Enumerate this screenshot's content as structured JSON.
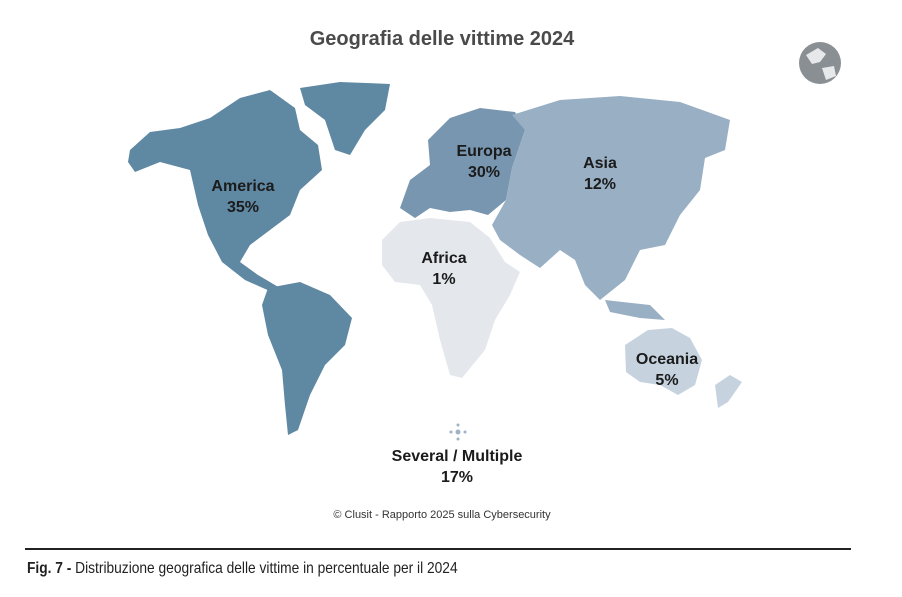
{
  "chart_data": {
    "type": "choropleth",
    "title": "Geografia delle vittime 2024",
    "regions": [
      {
        "name": "America",
        "value": 35,
        "label": "35%",
        "color": "#5f88a3"
      },
      {
        "name": "Europa",
        "value": 30,
        "label": "30%",
        "color": "#7896b0"
      },
      {
        "name": "Asia",
        "value": 12,
        "label": "12%",
        "color": "#98afc4"
      },
      {
        "name": "Africa",
        "value": 1,
        "label": "1%",
        "color": "#e4e8ec"
      },
      {
        "name": "Oceania",
        "value": 5,
        "label": "5%",
        "color": "#c6d3df"
      },
      {
        "name": "Several / Multiple",
        "value": 17,
        "label": "17%",
        "color": "#9fb3c6"
      }
    ]
  },
  "credit": "© Clusit - Rapporto 2025 sulla Cybersecurity",
  "caption": {
    "prefix": "Fig. 7 -",
    "text": " Distribuzione geografica delle vittime in percentuale per il 2024"
  },
  "icons": {
    "globe": "globe-icon",
    "multiple": "dots-cross-icon"
  }
}
